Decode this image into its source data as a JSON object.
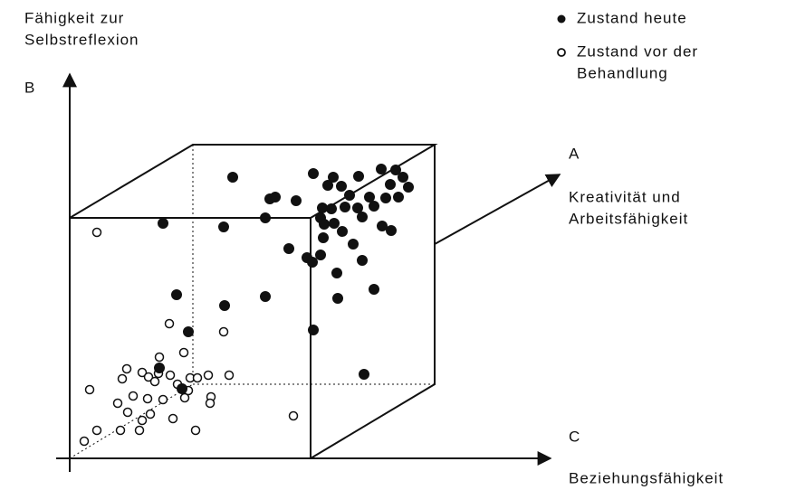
{
  "axes": {
    "b": {
      "title_lines": [
        "Fähigkeit zur",
        "Selbstreflexion"
      ],
      "letter": "B"
    },
    "a": {
      "letter": "A",
      "title_lines": [
        "Kreativität und",
        "Arbeitsfähigkeit"
      ]
    },
    "c": {
      "letter": "C",
      "title": "Beziehungsfähigkeit"
    }
  },
  "legend": [
    {
      "lines": [
        "Zustand heute"
      ]
    },
    {
      "lines": [
        "Zustand vor der",
        "Behandlung"
      ]
    }
  ]
}
